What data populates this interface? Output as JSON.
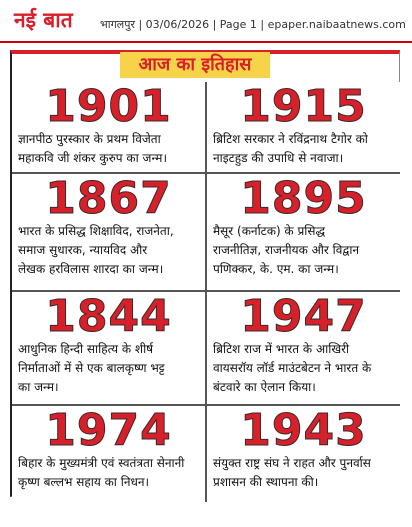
{
  "header": {
    "logo": "नई बात",
    "info": "भागलपुर | 03/06/2026 | Page 1 | epaper.naibaatnews.com"
  },
  "title": "आज का इतिहास",
  "entries": [
    {
      "year": "1901",
      "lines": [
        "ज्ञानपीठ पुरस्कार के प्रथम विजेता",
        "महाकवि जी शंकर कुरुप का जन्म।"
      ]
    },
    {
      "year": "1915",
      "lines": [
        "ब्रिटिश सरकार ने रविंद्रनाथ टैगोर को",
        "नाइटहुड की उपाधि से नवाजा।"
      ]
    },
    {
      "year": "1867",
      "lines": [
        "भारत के प्रसिद्ध शिक्षाविद, राजनेता,",
        "समाज सुधारक, न्यायविद और",
        "लेखक हरविलास शारदा का जन्म।"
      ]
    },
    {
      "year": "1895",
      "lines": [
        "मैसूर (कर्नाटक) के प्रसिद्ध",
        "राजनीतिज्ञ, राजनीयक और विद्वान",
        "पणिक्कर, के. एम. का जन्म।"
      ]
    },
    {
      "year": "1844",
      "lines": [
        "आधुनिक हिन्दी साहित्य के शीर्ष",
        "निर्माताओं में से एक बालकृष्ण भट्ट",
        "का जन्म।"
      ]
    },
    {
      "year": "1947",
      "lines": [
        "ब्रिटिश राज में भारत के आखिरी",
        "वायसरॉय लॉर्ड माउंटबेटन ने भारत के",
        "बंटवारे का ऐलान किया।"
      ]
    },
    {
      "year": "1974",
      "lines": [
        "बिहार के मुख्यमंत्री एवं स्वतंत्रता सेनानी",
        "कृष्ण बल्लभ सहाय का निधन।"
      ]
    },
    {
      "year": "1943",
      "lines": [
        "संयुक्त राष्ट्र संघ ने राहत और पुनर्वास",
        "प्रशासन की स्थापना की।"
      ]
    }
  ]
}
